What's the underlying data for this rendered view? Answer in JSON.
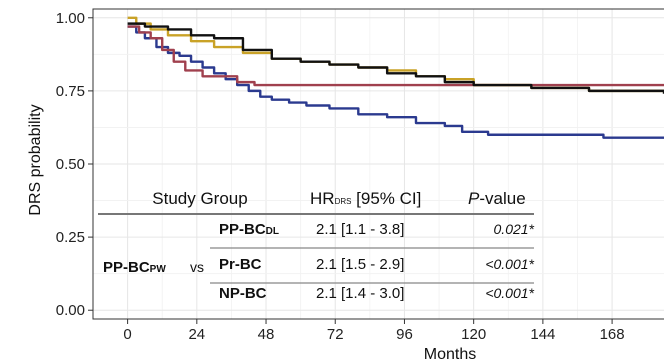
{
  "chart_data": {
    "type": "line",
    "xlabel": "Months",
    "ylabel": "DRS probability",
    "xlim": [
      -12,
      186
    ],
    "ylim": [
      -0.03,
      1.03
    ],
    "xticks": [
      0,
      24,
      48,
      72,
      96,
      120,
      144,
      168
    ],
    "yticks": [
      0.0,
      0.25,
      0.5,
      0.75,
      1.0
    ],
    "ytick_labels": [
      "0.00",
      "0.25",
      "0.50",
      "0.75",
      "1.00"
    ],
    "grid": true,
    "series": [
      {
        "key": "pp_bcpw",
        "color": "#2b3a8f",
        "points": [
          [
            0,
            0.97
          ],
          [
            3,
            0.95
          ],
          [
            6,
            0.93
          ],
          [
            10,
            0.9
          ],
          [
            14,
            0.88
          ],
          [
            18,
            0.87
          ],
          [
            22,
            0.85
          ],
          [
            26,
            0.83
          ],
          [
            30,
            0.81
          ],
          [
            34,
            0.79
          ],
          [
            38,
            0.77
          ],
          [
            42,
            0.75
          ],
          [
            46,
            0.73
          ],
          [
            50,
            0.72
          ],
          [
            56,
            0.71
          ],
          [
            62,
            0.7
          ],
          [
            70,
            0.69
          ],
          [
            80,
            0.67
          ],
          [
            90,
            0.66
          ],
          [
            100,
            0.64
          ],
          [
            110,
            0.63
          ],
          [
            116,
            0.61
          ],
          [
            125,
            0.6
          ],
          [
            150,
            0.6
          ],
          [
            165,
            0.59
          ],
          [
            186,
            0.59
          ]
        ]
      },
      {
        "key": "pp_bcdl",
        "color": "#a0404e",
        "points": [
          [
            0,
            0.97
          ],
          [
            4,
            0.95
          ],
          [
            8,
            0.93
          ],
          [
            12,
            0.89
          ],
          [
            16,
            0.85
          ],
          [
            20,
            0.82
          ],
          [
            26,
            0.8
          ],
          [
            34,
            0.8
          ],
          [
            38,
            0.78
          ],
          [
            44,
            0.77
          ],
          [
            60,
            0.77
          ],
          [
            96,
            0.77
          ],
          [
            120,
            0.77
          ],
          [
            186,
            0.77
          ]
        ]
      },
      {
        "key": "pr_bc",
        "color": "#c9a227",
        "points": [
          [
            0,
            1.0
          ],
          [
            3,
            0.98
          ],
          [
            8,
            0.96
          ],
          [
            14,
            0.94
          ],
          [
            22,
            0.92
          ],
          [
            30,
            0.9
          ],
          [
            40,
            0.88
          ],
          [
            50,
            0.86
          ],
          [
            60,
            0.85
          ],
          [
            70,
            0.84
          ],
          [
            80,
            0.83
          ],
          [
            90,
            0.82
          ],
          [
            100,
            0.8
          ],
          [
            110,
            0.79
          ],
          [
            120,
            0.77
          ],
          [
            140,
            0.76
          ],
          [
            160,
            0.75
          ],
          [
            186,
            0.75
          ]
        ]
      },
      {
        "key": "np_bc",
        "color": "#111111",
        "points": [
          [
            0,
            0.98
          ],
          [
            6,
            0.97
          ],
          [
            14,
            0.96
          ],
          [
            22,
            0.94
          ],
          [
            30,
            0.93
          ],
          [
            40,
            0.89
          ],
          [
            50,
            0.86
          ],
          [
            60,
            0.85
          ],
          [
            70,
            0.84
          ],
          [
            80,
            0.83
          ],
          [
            90,
            0.81
          ],
          [
            100,
            0.8
          ],
          [
            110,
            0.78
          ],
          [
            120,
            0.77
          ],
          [
            140,
            0.76
          ],
          [
            160,
            0.75
          ],
          [
            186,
            0.74
          ]
        ]
      }
    ],
    "table": {
      "header": {
        "group": "Study Group",
        "hr_main": "HR",
        "hr_sub": "DRS",
        "hr_rest": " [95% CI]",
        "p_main": "P",
        "p_rest": "-value"
      },
      "reference": {
        "main": "PP-BC",
        "sub": "PW",
        "color": "#2b3a8f"
      },
      "vs": "vs",
      "rows": [
        {
          "label_main": "PP-BC",
          "label_sub": "DL",
          "color": "#a0404e",
          "hr": "2.1 [1.1 - 3.8]",
          "p": "0.021*"
        },
        {
          "label_main": "Pr-BC",
          "label_sub": "",
          "color": "#c9a227",
          "hr": "2.1 [1.5 - 2.9]",
          "p": "<0.001*"
        },
        {
          "label_main": "NP-BC",
          "label_sub": "",
          "color": "#111111",
          "hr": "2.1 [1.4 - 3.0]",
          "p": "<0.001*"
        }
      ]
    }
  }
}
